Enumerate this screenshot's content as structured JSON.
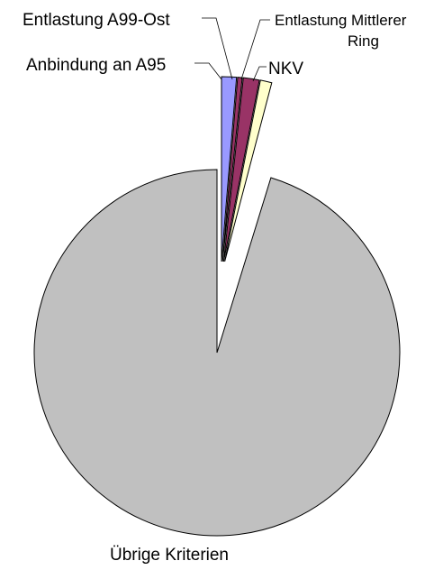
{
  "chart_data": {
    "type": "pie",
    "title": "",
    "slices": [
      {
        "label": "Anbindung an A95",
        "value": 1.3,
        "color": "#9999ff"
      },
      {
        "label": "Entlastung A99-Ost",
        "value": 0.4,
        "color": "#993366"
      },
      {
        "label": "Entlastung Mittlerer Ring",
        "value": 1.4,
        "color": "#993366"
      },
      {
        "label": "NKV",
        "value": 1.0,
        "color": "#ffffcc"
      },
      {
        "label": "Übrige Kriterien",
        "value": 95.9,
        "color": "#c0c0c0"
      }
    ],
    "legend": "none",
    "exploded": true
  },
  "labels": {
    "anbindung": "Anbindung an A95",
    "a99": "Entlastung A99-Ost",
    "mittlerer_line1": "Entlastung Mittlerer",
    "mittlerer_line2": "Ring",
    "nkv": "NKV",
    "uebrige": "Übrige Kriterien"
  }
}
